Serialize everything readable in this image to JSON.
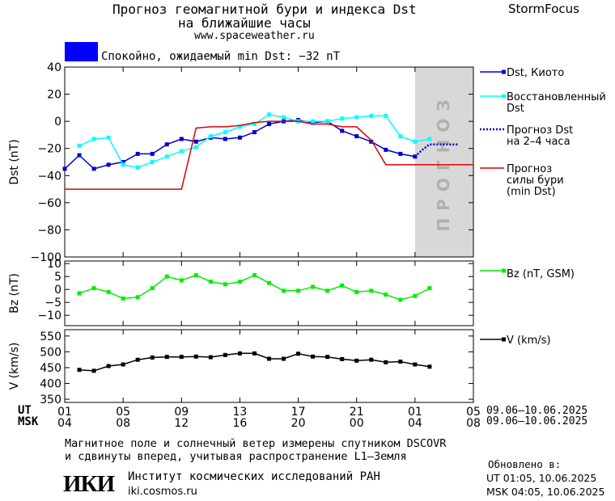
{
  "header": {
    "title_line1": "Прогноз геомагнитной бури и индекса Dst",
    "title_line2": "на ближайшие часы",
    "site": "www.spaceweather.ru",
    "brand": "StormFocus"
  },
  "status": {
    "text": "Спокойно, ожидаемый min Dst: −32 nT",
    "color": "#0000ff"
  },
  "legend": {
    "dst": "Dst, Киото",
    "restored": [
      "Восстановленный",
      "Dst"
    ],
    "forecast": [
      "Прогноз Dst",
      "на 2–4 часа"
    ],
    "storm": [
      "Прогноз",
      "силы бури",
      "(min Dst)"
    ],
    "bz": "Bz (nT, GSM)",
    "v": "V (km/s)"
  },
  "colors": {
    "dst": "#0000cc",
    "restored": "#00ffff",
    "forecast": "#0000cc",
    "storm": "#dd0000",
    "bz": "#00ee00",
    "v": "#000000",
    "forecast_zone": "#d8d8d8"
  },
  "forecast_zone_label": "ПРОГНОЗ",
  "time_axis": {
    "ut_label": "UT",
    "msk_label": "MSK",
    "ut_ticks": [
      "01",
      "05",
      "09",
      "13",
      "17",
      "21",
      "01",
      "05"
    ],
    "msk_ticks": [
      "04",
      "08",
      "12",
      "16",
      "20",
      "00",
      "04",
      "08"
    ],
    "ut_range": "09.06–10.06.2025",
    "msk_range": "09.06–10.06.2025"
  },
  "footer": {
    "note_line1": "Магнитное поле и солнечный ветер измерены спутником DSCOVR",
    "note_line2": "и сдвинуты вперед, учитывая распространение L1–Земля",
    "institute_logo": "ИКИ",
    "institute_name": "Институт космических исследований РАН",
    "institute_site": "iki.cosmos.ru",
    "updated_label": "Обновлено в:",
    "updated_ut": "UT  01:05, 10.06.2025",
    "updated_msk": "MSK 04:05, 10.06.2025"
  },
  "chart_data": [
    {
      "type": "line",
      "ylabel": "Dst (nT)",
      "ylim": [
        -100,
        40
      ],
      "yticks": [
        40,
        20,
        0,
        -20,
        -40,
        -60,
        -80,
        -100
      ],
      "xlim": [
        0,
        28
      ],
      "forecast_zone": [
        24,
        28
      ],
      "series": [
        {
          "name": "Dst, Киото",
          "x": [
            0,
            1,
            2,
            3,
            4,
            5,
            6,
            7,
            8,
            9,
            10,
            11,
            12,
            13,
            14,
            15,
            16,
            17,
            18,
            19,
            20,
            21,
            22,
            23,
            24
          ],
          "y": [
            -35,
            -25,
            -35,
            -32,
            -30,
            -24,
            -24,
            -17,
            -13,
            -15,
            -12,
            -13,
            -12,
            -8,
            -2,
            0,
            1,
            -1,
            0,
            -7,
            -11,
            -15,
            -21,
            -24,
            -26
          ]
        },
        {
          "name": "Восстановленный Dst",
          "x": [
            1,
            2,
            3,
            4,
            5,
            6,
            7,
            8,
            9,
            10,
            11,
            12,
            13,
            14,
            15,
            16,
            17,
            18,
            19,
            20,
            21,
            22,
            23,
            24,
            25
          ],
          "y": [
            -18,
            -13,
            -12,
            -32,
            -34,
            -30,
            -26,
            -22,
            -19,
            -11,
            -8,
            -4,
            -2,
            5,
            3,
            0,
            0,
            0,
            2,
            3,
            4,
            4,
            -11,
            -15,
            -13
          ]
        },
        {
          "name": "Прогноз Dst на 2–4 часа",
          "x": [
            24,
            24.5,
            25,
            26,
            27
          ],
          "y": [
            -26,
            -21,
            -17,
            -17,
            -17
          ]
        },
        {
          "name": "Прогноз силы бури (min Dst)",
          "x": [
            0,
            8,
            9,
            10,
            11,
            12,
            13,
            14,
            15,
            16,
            17,
            18,
            19,
            20,
            21,
            22,
            23,
            24,
            25,
            26,
            27,
            28
          ],
          "y": [
            -50,
            -50,
            -5,
            -4,
            -4,
            -3,
            -1,
            0,
            0,
            0,
            -2,
            -2,
            -4,
            -4,
            -14,
            -32,
            -32,
            -32,
            -32,
            -32,
            -32,
            -32
          ]
        }
      ]
    },
    {
      "type": "line",
      "ylabel": "Bz (nT)",
      "ylim": [
        -14,
        11
      ],
      "yticks": [
        10,
        5,
        0,
        -5,
        -10
      ],
      "xlim": [
        0,
        28
      ],
      "series": [
        {
          "name": "Bz (nT, GSM)",
          "x": [
            1,
            2,
            3,
            4,
            5,
            6,
            7,
            8,
            9,
            10,
            11,
            12,
            13,
            14,
            15,
            16,
            17,
            18,
            19,
            20,
            21,
            22,
            23,
            24,
            25
          ],
          "y": [
            -1.5,
            0.5,
            -1,
            -3.5,
            -3,
            0.5,
            5,
            3.5,
            5.5,
            3,
            2,
            3,
            5.5,
            2.5,
            -0.5,
            -0.5,
            1,
            -0.5,
            1.5,
            -1,
            -0.5,
            -2,
            -4,
            -2.5,
            0.5
          ]
        }
      ]
    },
    {
      "type": "line",
      "ylabel": "V (km/s)",
      "ylim": [
        340,
        570
      ],
      "yticks": [
        550,
        500,
        450,
        400,
        350
      ],
      "xlim": [
        0,
        28
      ],
      "series": [
        {
          "name": "V (km/s)",
          "x": [
            1,
            2,
            3,
            4,
            5,
            6,
            7,
            8,
            9,
            10,
            11,
            12,
            13,
            14,
            15,
            16,
            17,
            18,
            19,
            20,
            21,
            22,
            23,
            24,
            25
          ],
          "y": [
            443,
            440,
            455,
            460,
            475,
            482,
            484,
            484,
            485,
            483,
            490,
            495,
            495,
            478,
            478,
            494,
            485,
            484,
            477,
            472,
            475,
            467,
            469,
            460,
            453
          ]
        }
      ]
    }
  ]
}
